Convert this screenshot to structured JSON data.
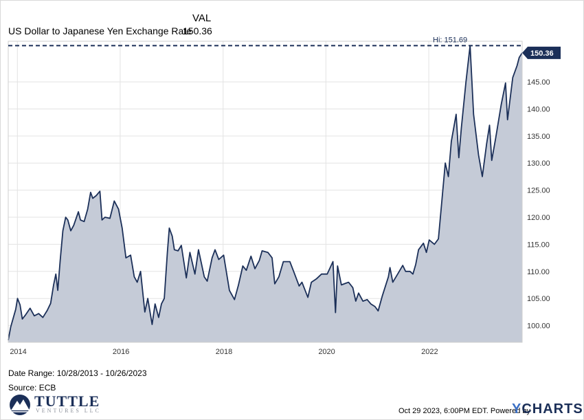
{
  "header": {
    "column_label": "VAL",
    "series_title": "US Dollar to Japanese Yen Exchange Rate",
    "series_value": "150.36"
  },
  "chart_data": {
    "type": "area",
    "x_tick_labels": [
      "2014",
      "2016",
      "2018",
      "2020",
      "2022"
    ],
    "y_tick_labels": [
      "100.00",
      "105.00",
      "110.00",
      "115.00",
      "120.00",
      "125.00",
      "130.00",
      "135.00",
      "140.00",
      "145.00"
    ],
    "ylim": [
      96.9,
      152.5
    ],
    "xlim": [
      "2013-10-28",
      "2023-10-26"
    ],
    "grid": true,
    "line_color": "#1b2f58",
    "fill_color": "#c5cbd7",
    "last_value_label": "150.36",
    "high_annotation": "Hi: 151.69",
    "high_value": 151.69,
    "points": [
      [
        "2013-10-28",
        97.3
      ],
      [
        "2013-11-15",
        99.8
      ],
      [
        "2013-12-20",
        103.0
      ],
      [
        "2014-01-02",
        105.0
      ],
      [
        "2014-01-20",
        103.8
      ],
      [
        "2014-02-05",
        101.2
      ],
      [
        "2014-03-01",
        102.0
      ],
      [
        "2014-04-01",
        103.2
      ],
      [
        "2014-05-01",
        101.8
      ],
      [
        "2014-06-01",
        102.2
      ],
      [
        "2014-07-01",
        101.5
      ],
      [
        "2014-08-01",
        102.8
      ],
      [
        "2014-08-25",
        104.1
      ],
      [
        "2014-09-15",
        107.5
      ],
      [
        "2014-10-01",
        109.5
      ],
      [
        "2014-10-15",
        106.5
      ],
      [
        "2014-11-01",
        112.0
      ],
      [
        "2014-11-20",
        117.5
      ],
      [
        "2014-12-10",
        120.0
      ],
      [
        "2014-12-25",
        119.5
      ],
      [
        "2015-01-15",
        117.5
      ],
      [
        "2015-02-05",
        118.5
      ],
      [
        "2015-03-10",
        121.0
      ],
      [
        "2015-03-25",
        119.5
      ],
      [
        "2015-04-20",
        119.2
      ],
      [
        "2015-05-15",
        121.5
      ],
      [
        "2015-06-05",
        124.6
      ],
      [
        "2015-06-20",
        123.5
      ],
      [
        "2015-07-15",
        124.0
      ],
      [
        "2015-08-10",
        124.8
      ],
      [
        "2015-08-25",
        119.5
      ],
      [
        "2015-09-15",
        120.0
      ],
      [
        "2015-10-20",
        119.8
      ],
      [
        "2015-11-20",
        123.0
      ],
      [
        "2015-12-20",
        121.5
      ],
      [
        "2016-01-15",
        118.0
      ],
      [
        "2016-02-11",
        112.5
      ],
      [
        "2016-03-15",
        113.0
      ],
      [
        "2016-04-10",
        109.0
      ],
      [
        "2016-05-01",
        108.0
      ],
      [
        "2016-05-25",
        110.0
      ],
      [
        "2016-06-24",
        102.5
      ],
      [
        "2016-07-15",
        105.0
      ],
      [
        "2016-08-15",
        100.2
      ],
      [
        "2016-09-05",
        104.0
      ],
      [
        "2016-09-30",
        101.5
      ],
      [
        "2016-10-20",
        104.0
      ],
      [
        "2016-11-09",
        105.0
      ],
      [
        "2016-12-01",
        113.5
      ],
      [
        "2016-12-15",
        118.0
      ],
      [
        "2017-01-05",
        116.5
      ],
      [
        "2017-01-20",
        114.0
      ],
      [
        "2017-02-15",
        113.8
      ],
      [
        "2017-03-10",
        114.8
      ],
      [
        "2017-04-15",
        108.8
      ],
      [
        "2017-05-10",
        113.5
      ],
      [
        "2017-06-15",
        109.5
      ],
      [
        "2017-07-10",
        114.0
      ],
      [
        "2017-08-20",
        109.0
      ],
      [
        "2017-09-10",
        108.2
      ],
      [
        "2017-10-15",
        112.5
      ],
      [
        "2017-11-05",
        114.0
      ],
      [
        "2017-12-01",
        112.2
      ],
      [
        "2018-01-05",
        113.0
      ],
      [
        "2018-02-15",
        106.5
      ],
      [
        "2018-03-23",
        104.8
      ],
      [
        "2018-04-20",
        107.5
      ],
      [
        "2018-05-21",
        111.0
      ],
      [
        "2018-06-15",
        110.2
      ],
      [
        "2018-07-18",
        112.8
      ],
      [
        "2018-08-15",
        110.5
      ],
      [
        "2018-09-15",
        112.0
      ],
      [
        "2018-10-05",
        113.8
      ],
      [
        "2018-11-15",
        113.5
      ],
      [
        "2018-12-15",
        112.5
      ],
      [
        "2019-01-03",
        107.7
      ],
      [
        "2019-02-01",
        109.0
      ],
      [
        "2019-03-05",
        111.8
      ],
      [
        "2019-04-20",
        111.8
      ],
      [
        "2019-05-20",
        109.8
      ],
      [
        "2019-06-25",
        107.3
      ],
      [
        "2019-07-15",
        108.0
      ],
      [
        "2019-08-26",
        105.2
      ],
      [
        "2019-09-20",
        108.0
      ],
      [
        "2019-10-25",
        108.6
      ],
      [
        "2019-12-01",
        109.5
      ],
      [
        "2020-01-10",
        109.5
      ],
      [
        "2020-02-20",
        111.8
      ],
      [
        "2020-03-09",
        102.4
      ],
      [
        "2020-03-24",
        111.0
      ],
      [
        "2020-04-20",
        107.5
      ],
      [
        "2020-05-20",
        107.8
      ],
      [
        "2020-06-10",
        108.0
      ],
      [
        "2020-07-10",
        107.0
      ],
      [
        "2020-07-31",
        104.5
      ],
      [
        "2020-08-20",
        106.0
      ],
      [
        "2020-09-20",
        104.5
      ],
      [
        "2020-10-20",
        104.8
      ],
      [
        "2020-11-15",
        104.0
      ],
      [
        "2020-12-15",
        103.5
      ],
      [
        "2021-01-06",
        102.7
      ],
      [
        "2021-02-05",
        105.5
      ],
      [
        "2021-03-20",
        109.0
      ],
      [
        "2021-03-31",
        110.7
      ],
      [
        "2021-04-20",
        108.0
      ],
      [
        "2021-05-25",
        109.5
      ],
      [
        "2021-06-30",
        111.1
      ],
      [
        "2021-07-20",
        110.0
      ],
      [
        "2021-08-20",
        110.0
      ],
      [
        "2021-09-10",
        109.5
      ],
      [
        "2021-09-30",
        111.3
      ],
      [
        "2021-10-20",
        114.0
      ],
      [
        "2021-11-24",
        115.2
      ],
      [
        "2021-12-15",
        113.5
      ],
      [
        "2022-01-04",
        115.8
      ],
      [
        "2022-02-10",
        115.0
      ],
      [
        "2022-03-10",
        116.0
      ],
      [
        "2022-03-31",
        122.0
      ],
      [
        "2022-04-28",
        130.0
      ],
      [
        "2022-05-20",
        127.5
      ],
      [
        "2022-06-10",
        134.0
      ],
      [
        "2022-07-14",
        139.0
      ],
      [
        "2022-08-02",
        131.0
      ],
      [
        "2022-08-20",
        136.5
      ],
      [
        "2022-09-22",
        145.0
      ],
      [
        "2022-10-21",
        151.69
      ],
      [
        "2022-11-15",
        139.0
      ],
      [
        "2022-12-20",
        131.5
      ],
      [
        "2023-01-16",
        127.5
      ],
      [
        "2023-02-15",
        133.5
      ],
      [
        "2023-03-08",
        137.0
      ],
      [
        "2023-03-24",
        130.5
      ],
      [
        "2023-04-20",
        134.5
      ],
      [
        "2023-05-30",
        140.8
      ],
      [
        "2023-06-30",
        144.8
      ],
      [
        "2023-07-14",
        138.0
      ],
      [
        "2023-08-20",
        145.8
      ],
      [
        "2023-09-20",
        148.0
      ],
      [
        "2023-10-05",
        149.5
      ],
      [
        "2023-10-26",
        150.36
      ]
    ]
  },
  "footer": {
    "date_range": "Date Range: 10/28/2013 - 10/26/2023",
    "source": "Source: ECB",
    "timestamp": "Oct 29 2023, 6:00PM EDT.  Powered by",
    "brand_prefix": "Y",
    "brand_name": "CHARTS",
    "logo_word": "TUTTLE",
    "logo_sub": "VENTURES LLC"
  }
}
